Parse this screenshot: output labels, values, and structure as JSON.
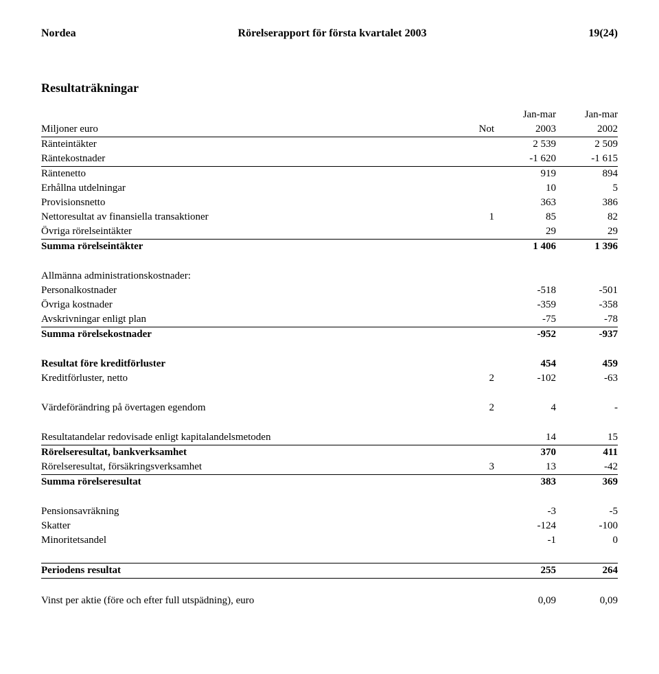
{
  "header": {
    "left": "Nordea",
    "center": "Rörelserapport för första kvartalet 2003",
    "right": "19(24)"
  },
  "title": "Resultaträkningar",
  "col_headers": {
    "top1": "Jan-mar",
    "top2": "Jan-mar",
    "sub_label": "Miljoner euro",
    "sub_not": "Not",
    "sub_v1": "2003",
    "sub_v2": "2002"
  },
  "rows": [
    {
      "label": "Ränteintäkter",
      "not": "",
      "v1": "2 539",
      "v2": "2 509"
    },
    {
      "label": "Räntekostnader",
      "not": "",
      "v1": "-1 620",
      "v2": "-1 615"
    },
    {
      "label": "Räntenetto",
      "not": "",
      "v1": "919",
      "v2": "894",
      "style": "rule-above"
    },
    {
      "label": "Erhållna utdelningar",
      "not": "",
      "v1": "10",
      "v2": "5"
    },
    {
      "label": "Provisionsnetto",
      "not": "",
      "v1": "363",
      "v2": "386"
    },
    {
      "label": "Nettoresultat av finansiella transaktioner",
      "not": "1",
      "v1": "85",
      "v2": "82"
    },
    {
      "label": "Övriga rörelseintäkter",
      "not": "",
      "v1": "29",
      "v2": "29"
    },
    {
      "label": "Summa rörelseintäkter",
      "not": "",
      "v1": "1 406",
      "v2": "1 396",
      "style": "bold rule-above"
    },
    {
      "spacer": true
    },
    {
      "label": "Allmänna administrationskostnader:",
      "not": "",
      "v1": "",
      "v2": ""
    },
    {
      "label": "Personalkostnader",
      "not": "",
      "v1": "-518",
      "v2": "-501"
    },
    {
      "label": "Övriga kostnader",
      "not": "",
      "v1": "-359",
      "v2": "-358"
    },
    {
      "label": "Avskrivningar enligt plan",
      "not": "",
      "v1": "-75",
      "v2": "-78"
    },
    {
      "label": "Summa rörelsekostnader",
      "not": "",
      "v1": "-952",
      "v2": "-937",
      "style": "bold rule-above"
    },
    {
      "spacer": true
    },
    {
      "label": "Resultat före kreditförluster",
      "not": "",
      "v1": "454",
      "v2": "459",
      "style": "bold"
    },
    {
      "label": "Kreditförluster, netto",
      "not": "2",
      "v1": "-102",
      "v2": "-63"
    },
    {
      "spacer": true
    },
    {
      "label": "Värdeförändring på övertagen egendom",
      "not": "2",
      "v1": "4",
      "v2": "-"
    },
    {
      "spacer": true
    },
    {
      "label": "Resultatandelar redovisade enligt kapitalandelsmetoden",
      "not": "",
      "v1": "14",
      "v2": "15"
    },
    {
      "label": "Rörelseresultat, bankverksamhet",
      "not": "",
      "v1": "370",
      "v2": "411",
      "style": "bold rule-above"
    },
    {
      "label": "Rörelseresultat, försäkringsverksamhet",
      "not": "3",
      "v1": "13",
      "v2": "-42"
    },
    {
      "label": "Summa rörelseresultat",
      "not": "",
      "v1": "383",
      "v2": "369",
      "style": "bold rule-above"
    },
    {
      "spacer": true
    },
    {
      "label": "Pensionsavräkning",
      "not": "",
      "v1": "-3",
      "v2": "-5"
    },
    {
      "label": "Skatter",
      "not": "",
      "v1": "-124",
      "v2": "-100"
    },
    {
      "label": "Minoritetsandel",
      "not": "",
      "v1": "-1",
      "v2": "0"
    },
    {
      "spacer": true,
      "style": "rule-under-all"
    },
    {
      "label": "Periodens resultat",
      "not": "",
      "v1": "255",
      "v2": "264",
      "style": "bold rule-under-all"
    },
    {
      "spacer": true
    },
    {
      "label": "Vinst per aktie (före och efter full utspädning), euro",
      "not": "",
      "v1": "0,09",
      "v2": "0,09"
    }
  ]
}
